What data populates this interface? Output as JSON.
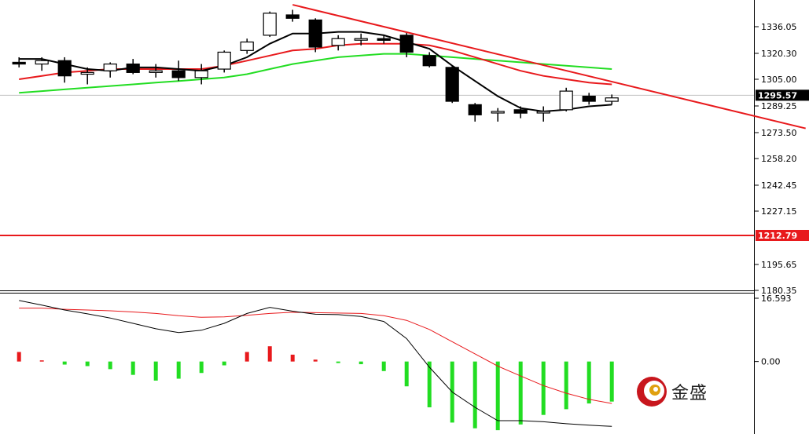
{
  "chart_data": [
    {
      "type": "candlestick",
      "y_ticks": [
        "1336.05",
        "1320.30",
        "1305.00",
        "1289.25",
        "1273.50",
        "1258.20",
        "1242.45",
        "1227.15",
        "1195.65",
        "1180.35"
      ],
      "ylim": [
        1180.35,
        1351.8
      ],
      "current_price": {
        "label": "1295.57",
        "value": 1295.57
      },
      "horizontal_line": {
        "label": "1212.79",
        "value": 1212.79,
        "color": "#e8191c"
      },
      "candles": [
        {
          "o": 1315.0,
          "h": 1318.0,
          "l": 1312.0,
          "c": 1314.0
        },
        {
          "o": 1314.0,
          "h": 1318.0,
          "l": 1310.0,
          "c": 1316.0
        },
        {
          "o": 1316.0,
          "h": 1318.0,
          "l": 1303.0,
          "c": 1307.0
        },
        {
          "o": 1308.0,
          "h": 1312.0,
          "l": 1302.0,
          "c": 1309.0
        },
        {
          "o": 1310.0,
          "h": 1315.0,
          "l": 1306.0,
          "c": 1314.0
        },
        {
          "o": 1314.0,
          "h": 1317.0,
          "l": 1308.0,
          "c": 1309.0
        },
        {
          "o": 1309.0,
          "h": 1314.0,
          "l": 1306.0,
          "c": 1310.0
        },
        {
          "o": 1310.0,
          "h": 1316.0,
          "l": 1304.0,
          "c": 1306.0
        },
        {
          "o": 1306.0,
          "h": 1314.0,
          "l": 1302.0,
          "c": 1310.0
        },
        {
          "o": 1311.0,
          "h": 1322.0,
          "l": 1309.0,
          "c": 1321.0
        },
        {
          "o": 1322.0,
          "h": 1329.0,
          "l": 1320.0,
          "c": 1327.0
        },
        {
          "o": 1331.0,
          "h": 1345.0,
          "l": 1330.0,
          "c": 1344.0
        },
        {
          "o": 1343.0,
          "h": 1346.0,
          "l": 1339.0,
          "c": 1341.0
        },
        {
          "o": 1340.0,
          "h": 1341.0,
          "l": 1321.0,
          "c": 1324.0
        },
        {
          "o": 1325.0,
          "h": 1331.0,
          "l": 1322.0,
          "c": 1329.0
        },
        {
          "o": 1329.0,
          "h": 1332.0,
          "l": 1325.0,
          "c": 1329.0
        },
        {
          "o": 1329.0,
          "h": 1331.0,
          "l": 1326.0,
          "c": 1328.0
        },
        {
          "o": 1331.0,
          "h": 1333.0,
          "l": 1318.0,
          "c": 1321.0
        },
        {
          "o": 1319.0,
          "h": 1321.0,
          "l": 1312.0,
          "c": 1313.0
        },
        {
          "o": 1312.0,
          "h": 1313.0,
          "l": 1291.0,
          "c": 1292.0
        },
        {
          "o": 1290.0,
          "h": 1291.0,
          "l": 1280.0,
          "c": 1284.0
        },
        {
          "o": 1286.0,
          "h": 1288.0,
          "l": 1280.0,
          "c": 1286.0
        },
        {
          "o": 1287.0,
          "h": 1289.0,
          "l": 1282.0,
          "c": 1285.0
        },
        {
          "o": 1286.0,
          "h": 1289.0,
          "l": 1280.0,
          "c": 1286.0
        },
        {
          "o": 1287.0,
          "h": 1300.0,
          "l": 1286.0,
          "c": 1298.0
        },
        {
          "o": 1295.0,
          "h": 1297.0,
          "l": 1290.0,
          "c": 1292.0
        },
        {
          "o": 1292.0,
          "h": 1296.0,
          "l": 1290.0,
          "c": 1294.0
        }
      ],
      "ma_short": {
        "color": "#000000",
        "values": [
          1317,
          1317,
          1314,
          1311,
          1310,
          1312,
          1312,
          1311,
          1310,
          1313,
          1318,
          1326,
          1332,
          1332,
          1333,
          1333,
          1331,
          1327,
          1323,
          1313,
          1304,
          1295,
          1288,
          1286,
          1287,
          1289,
          1290
        ]
      },
      "ma_mid": {
        "color": "#e8191c",
        "values": [
          1305,
          1307,
          1309,
          1310,
          1311,
          1311,
          1311,
          1311,
          1311,
          1313,
          1316,
          1319,
          1322,
          1323,
          1325,
          1326,
          1326,
          1326,
          1325,
          1322,
          1318,
          1314,
          1310,
          1307,
          1305,
          1303,
          1302
        ]
      },
      "ma_long": {
        "color": "#22dd22",
        "values": [
          1297,
          1298,
          1299,
          1300,
          1301,
          1302,
          1303,
          1304,
          1305,
          1306,
          1308,
          1311,
          1314,
          1316,
          1318,
          1319,
          1320,
          1320,
          1319,
          1318,
          1317,
          1316,
          1315,
          1314,
          1313,
          1312,
          1311
        ]
      },
      "trendline": {
        "color": "#e8191c",
        "from": {
          "x": 12,
          "y": 1349
        },
        "to": {
          "x": 34.5,
          "y": 1276
        }
      }
    },
    {
      "type": "macd",
      "y_ticks": [
        "16.593",
        "0.00"
      ],
      "ylim": [
        -19,
        16.593
      ],
      "histogram": [
        2.5,
        0.3,
        -0.8,
        -1.2,
        -2.0,
        -3.5,
        -5.0,
        -4.5,
        -3.0,
        -1.0,
        2.5,
        4.0,
        1.8,
        0.5,
        -0.4,
        -0.7,
        -2.5,
        -6.5,
        -12.0,
        -16.0,
        -17.5,
        -18.0,
        -16.5,
        -14.0,
        -12.5,
        -11.0,
        -10.5
      ],
      "macd_line": {
        "color": "#000000",
        "values": [
          16.0,
          14.8,
          13.5,
          12.5,
          11.4,
          10.0,
          8.6,
          7.6,
          8.2,
          10.0,
          12.6,
          14.2,
          13.2,
          12.4,
          12.3,
          11.8,
          10.5,
          6.0,
          -1.5,
          -8.0,
          -12.0,
          -15.5,
          -15.5,
          -15.8,
          -16.3,
          -16.7,
          -17.0
        ]
      },
      "signal_line": {
        "color": "#e8191c",
        "values": [
          14.0,
          14.0,
          13.7,
          13.5,
          13.3,
          13.0,
          12.6,
          12.0,
          11.6,
          11.7,
          12.1,
          12.6,
          12.9,
          12.8,
          12.7,
          12.6,
          12.0,
          10.8,
          8.4,
          5.2,
          2.0,
          -1.2,
          -3.8,
          -6.3,
          -8.3,
          -9.9,
          -11.0
        ]
      }
    }
  ],
  "logo": {
    "text": "金盛",
    "icon": "jinsheng-logo-icon"
  },
  "colors": {
    "bull_candle": "#ffffff",
    "bear_candle": "#000000",
    "hist_up": "#e8191c",
    "hist_down": "#22dd22"
  }
}
